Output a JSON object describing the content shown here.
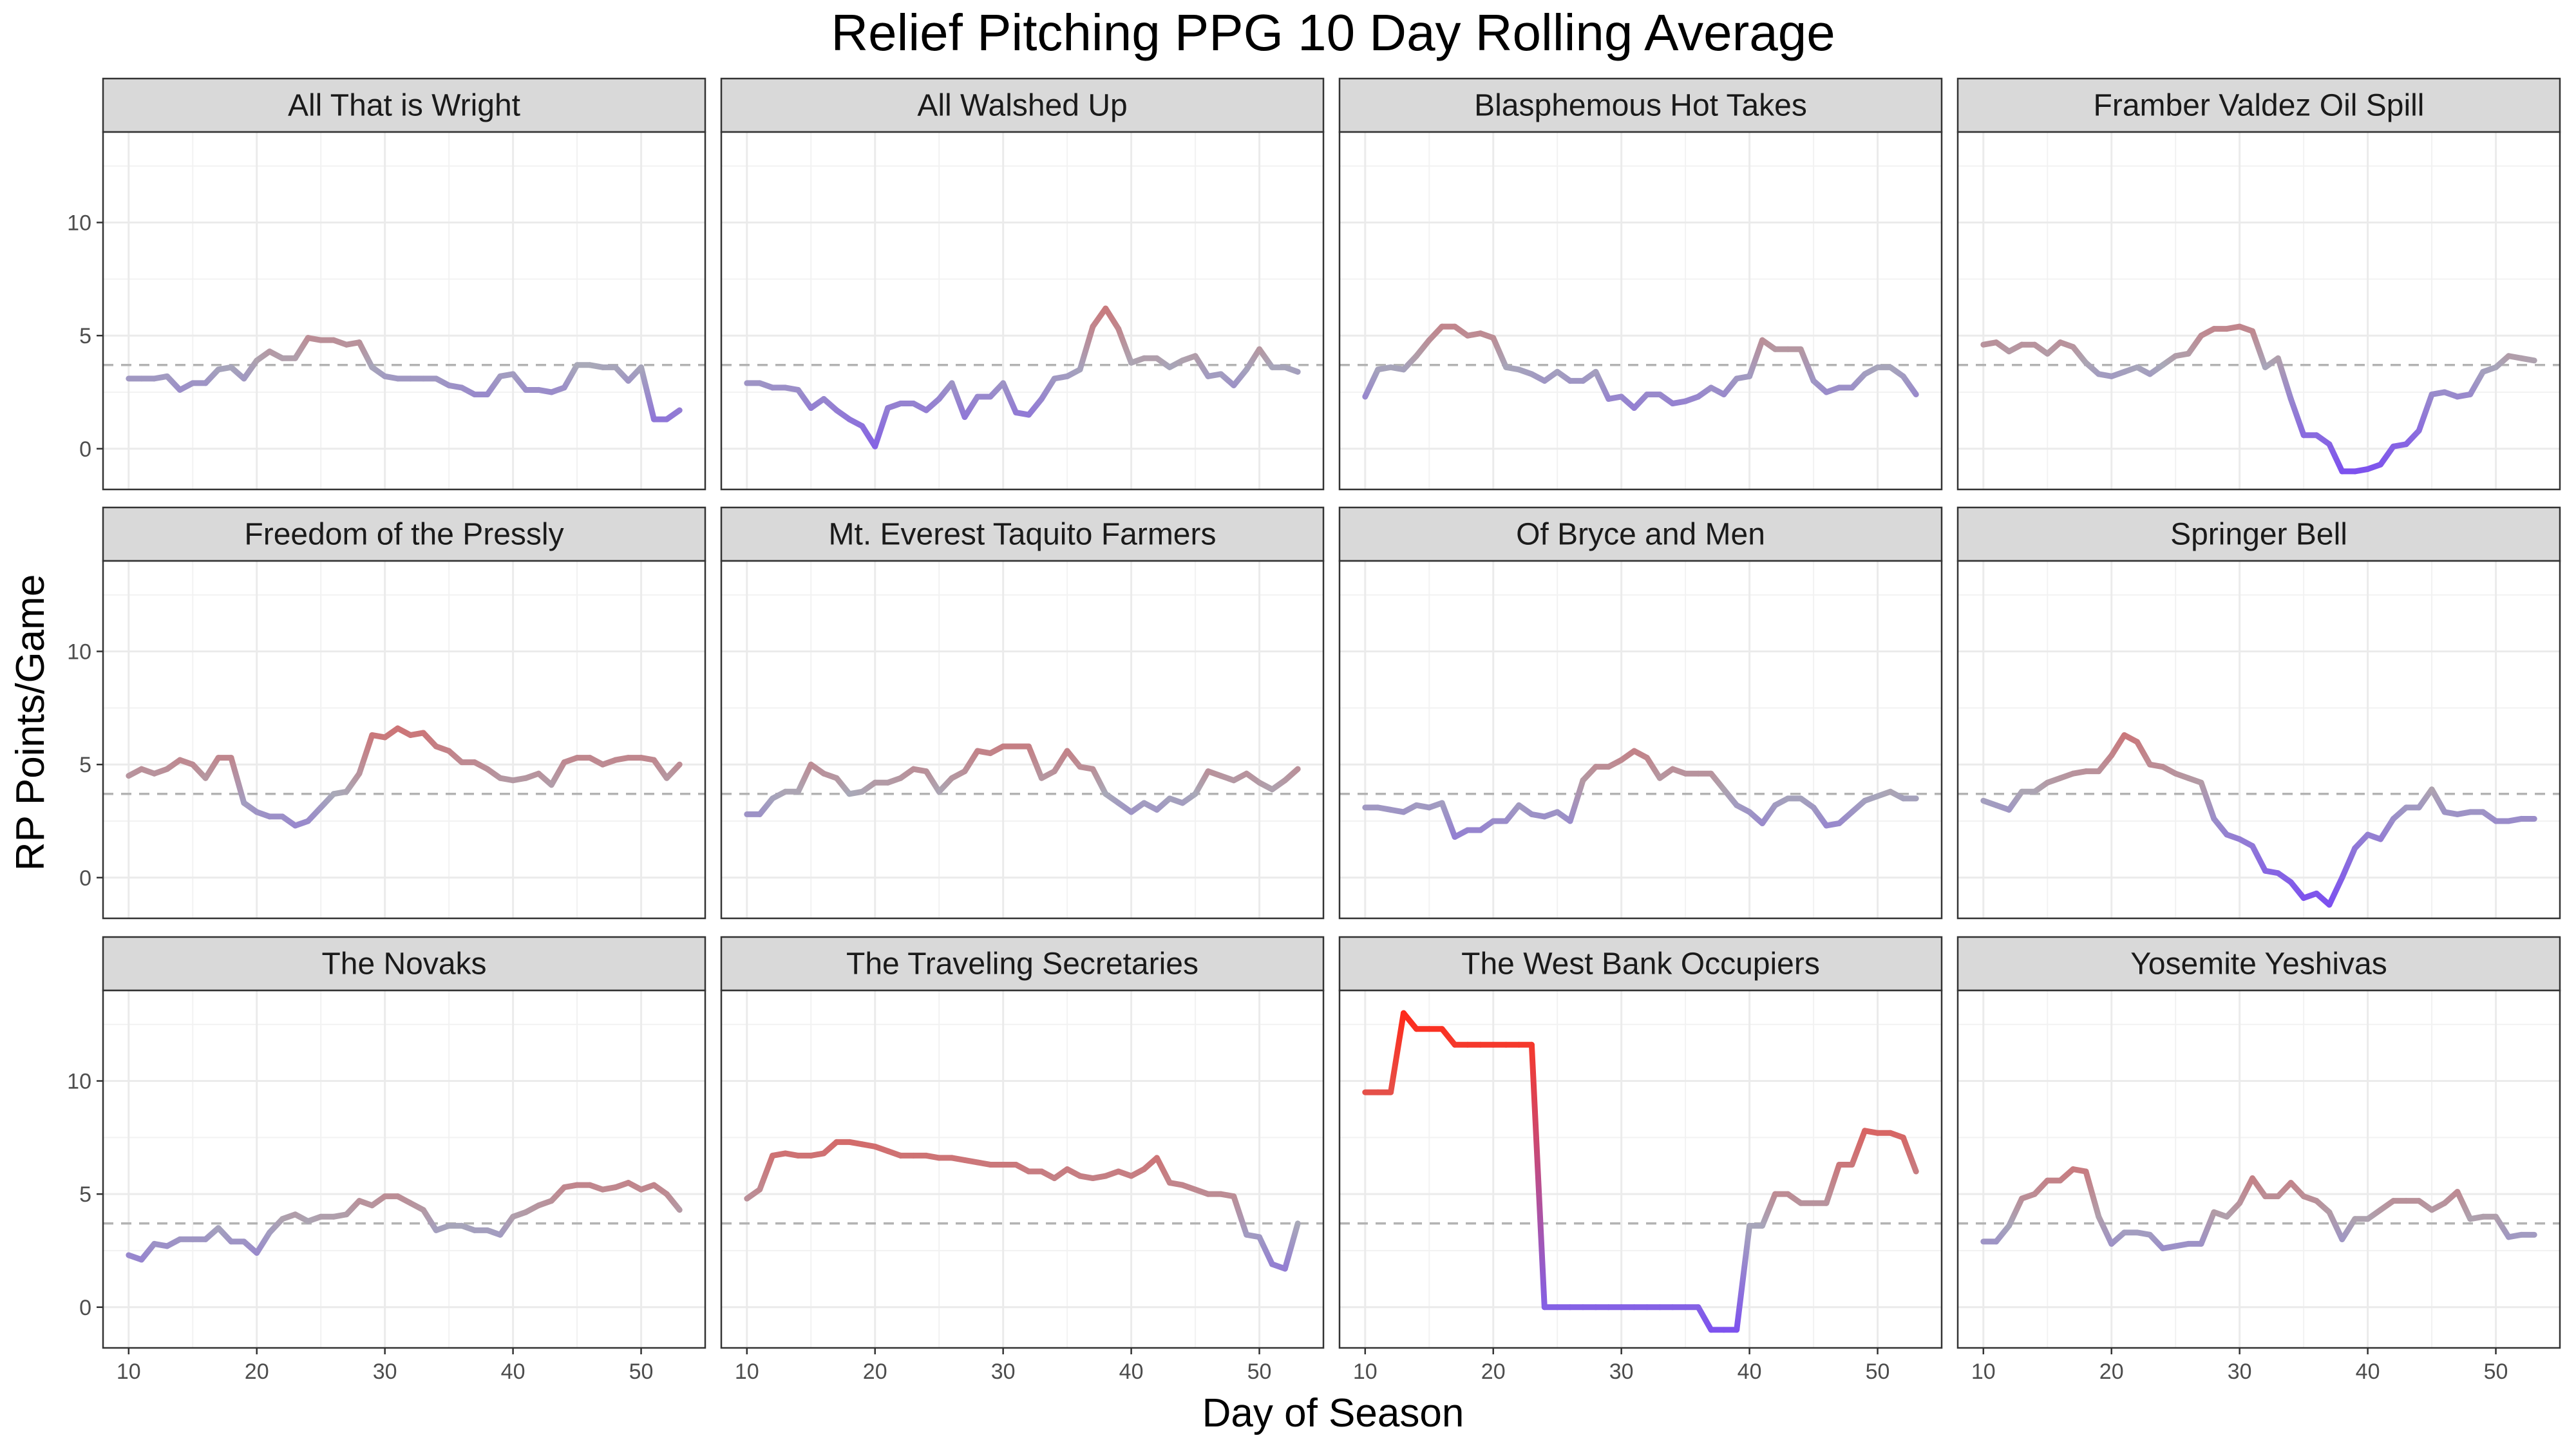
{
  "chart_data": {
    "type": "line",
    "title": "Relief Pitching PPG 10 Day Rolling Average",
    "xlabel": "Day of Season",
    "ylabel": "RP Points/Game",
    "xlim": [
      8,
      55
    ],
    "ylim": [
      -1.8,
      14.0
    ],
    "x_ticks": [
      10,
      20,
      30,
      40,
      50
    ],
    "y_ticks": [
      0,
      5,
      10
    ],
    "reference_line": {
      "y": 3.7,
      "style": "dashed",
      "color": "#b3b3b3"
    },
    "grid": true,
    "facet_layout": {
      "cols": 4,
      "rows": 3
    },
    "color_scale": {
      "low": "#7b4ff0",
      "mid": "#a9a9b8",
      "high": "#ff2a1a",
      "midpoint": 3.7
    },
    "x": [
      10,
      11,
      12,
      13,
      14,
      15,
      16,
      17,
      18,
      19,
      20,
      21,
      22,
      23,
      24,
      25,
      26,
      27,
      28,
      29,
      30,
      31,
      32,
      33,
      34,
      35,
      36,
      37,
      38,
      39,
      40,
      41,
      42,
      43,
      44,
      45,
      46,
      47,
      48,
      49,
      50,
      51,
      52,
      53
    ],
    "series": [
      {
        "name": "All That is Wright",
        "values": [
          3.1,
          3.1,
          3.1,
          3.2,
          2.6,
          2.9,
          2.9,
          3.5,
          3.6,
          3.1,
          3.9,
          4.3,
          4.0,
          4.0,
          4.9,
          4.8,
          4.8,
          4.6,
          4.7,
          3.6,
          3.2,
          3.1,
          3.1,
          3.1,
          3.1,
          2.8,
          2.7,
          2.4,
          2.4,
          3.2,
          3.3,
          2.6,
          2.6,
          2.5,
          2.7,
          3.7,
          3.7,
          3.6,
          3.6,
          3.0,
          3.6,
          1.3,
          1.3,
          1.7
        ]
      },
      {
        "name": "All Walshed Up",
        "values": [
          2.9,
          2.9,
          2.7,
          2.7,
          2.6,
          1.8,
          2.2,
          1.7,
          1.3,
          1.0,
          0.1,
          1.8,
          2.0,
          2.0,
          1.7,
          2.2,
          2.9,
          1.4,
          2.3,
          2.3,
          2.9,
          1.6,
          1.5,
          2.2,
          3.1,
          3.2,
          3.5,
          5.4,
          6.2,
          5.3,
          3.8,
          4.0,
          4.0,
          3.6,
          3.9,
          4.1,
          3.2,
          3.3,
          2.8,
          3.5,
          4.4,
          3.6,
          3.6,
          3.4
        ]
      },
      {
        "name": "Blasphemous Hot Takes",
        "values": [
          2.3,
          3.5,
          3.6,
          3.5,
          4.1,
          4.8,
          5.4,
          5.4,
          5.0,
          5.1,
          4.9,
          3.6,
          3.5,
          3.3,
          3.0,
          3.4,
          3.0,
          3.0,
          3.4,
          2.2,
          2.3,
          1.8,
          2.4,
          2.4,
          2.0,
          2.1,
          2.3,
          2.7,
          2.4,
          3.1,
          3.2,
          4.8,
          4.4,
          4.4,
          4.4,
          3.0,
          2.5,
          2.7,
          2.7,
          3.3,
          3.6,
          3.6,
          3.2,
          2.4
        ]
      },
      {
        "name": "Framber Valdez Oil Spill",
        "values": [
          4.6,
          4.7,
          4.3,
          4.6,
          4.6,
          4.2,
          4.7,
          4.5,
          3.8,
          3.3,
          3.2,
          3.4,
          3.6,
          3.3,
          3.7,
          4.1,
          4.2,
          5.0,
          5.3,
          5.3,
          5.4,
          5.2,
          3.6,
          4.0,
          2.2,
          0.6,
          0.6,
          0.2,
          -1.0,
          -1.0,
          -0.9,
          -0.7,
          0.1,
          0.2,
          0.8,
          2.4,
          2.5,
          2.3,
          2.4,
          3.4,
          3.6,
          4.1,
          4.0,
          3.9
        ]
      },
      {
        "name": "Freedom of the Pressly",
        "values": [
          4.5,
          4.8,
          4.6,
          4.8,
          5.2,
          5.0,
          4.4,
          5.3,
          5.3,
          3.3,
          2.9,
          2.7,
          2.7,
          2.3,
          2.5,
          3.1,
          3.7,
          3.8,
          4.6,
          6.3,
          6.2,
          6.6,
          6.3,
          6.4,
          5.8,
          5.6,
          5.1,
          5.1,
          4.8,
          4.4,
          4.3,
          4.4,
          4.6,
          4.1,
          5.1,
          5.3,
          5.3,
          5.0,
          5.2,
          5.3,
          5.3,
          5.2,
          4.4,
          5.0
        ]
      },
      {
        "name": "Mt. Everest Taquito Farmers",
        "values": [
          2.8,
          2.8,
          3.5,
          3.8,
          3.8,
          5.0,
          4.6,
          4.4,
          3.7,
          3.8,
          4.2,
          4.2,
          4.4,
          4.8,
          4.7,
          3.8,
          4.4,
          4.7,
          5.6,
          5.5,
          5.8,
          5.8,
          5.8,
          4.4,
          4.7,
          5.6,
          4.9,
          4.8,
          3.7,
          3.3,
          2.9,
          3.3,
          3.0,
          3.5,
          3.3,
          3.7,
          4.7,
          4.5,
          4.3,
          4.6,
          4.2,
          3.9,
          4.3,
          4.8
        ]
      },
      {
        "name": "Of Bryce and Men",
        "values": [
          3.1,
          3.1,
          3.0,
          2.9,
          3.2,
          3.1,
          3.3,
          1.8,
          2.1,
          2.1,
          2.5,
          2.5,
          3.2,
          2.8,
          2.7,
          2.9,
          2.5,
          4.3,
          4.9,
          4.9,
          5.2,
          5.6,
          5.3,
          4.4,
          4.8,
          4.6,
          4.6,
          4.6,
          3.9,
          3.2,
          2.9,
          2.4,
          3.2,
          3.5,
          3.5,
          3.1,
          2.3,
          2.4,
          2.9,
          3.4,
          3.6,
          3.8,
          3.5,
          3.5
        ]
      },
      {
        "name": "Springer Bell",
        "values": [
          3.4,
          3.2,
          3.0,
          3.8,
          3.8,
          4.2,
          4.4,
          4.6,
          4.7,
          4.7,
          5.4,
          6.3,
          6.0,
          5.0,
          4.9,
          4.6,
          4.4,
          4.2,
          2.6,
          1.9,
          1.7,
          1.4,
          0.3,
          0.2,
          -0.2,
          -0.9,
          -0.7,
          -1.2,
          0.0,
          1.3,
          1.9,
          1.7,
          2.6,
          3.1,
          3.1,
          3.9,
          2.9,
          2.8,
          2.9,
          2.9,
          2.5,
          2.5,
          2.6,
          2.6
        ]
      },
      {
        "name": "The Novaks",
        "values": [
          2.3,
          2.1,
          2.8,
          2.7,
          3.0,
          3.0,
          3.0,
          3.5,
          2.9,
          2.9,
          2.4,
          3.3,
          3.9,
          4.1,
          3.8,
          4.0,
          4.0,
          4.1,
          4.7,
          4.5,
          4.9,
          4.9,
          4.6,
          4.3,
          3.4,
          3.6,
          3.6,
          3.4,
          3.4,
          3.2,
          4.0,
          4.2,
          4.5,
          4.7,
          5.3,
          5.4,
          5.4,
          5.2,
          5.3,
          5.5,
          5.2,
          5.4,
          5.0,
          4.3
        ]
      },
      {
        "name": "The Traveling Secretaries",
        "values": [
          4.8,
          5.2,
          6.7,
          6.8,
          6.7,
          6.7,
          6.8,
          7.3,
          7.3,
          7.2,
          7.1,
          6.9,
          6.7,
          6.7,
          6.7,
          6.6,
          6.6,
          6.5,
          6.4,
          6.3,
          6.3,
          6.3,
          6.0,
          6.0,
          5.7,
          6.1,
          5.8,
          5.7,
          5.8,
          6.0,
          5.8,
          6.1,
          6.6,
          5.5,
          5.4,
          5.2,
          5.0,
          5.0,
          4.9,
          3.2,
          3.1,
          1.9,
          1.7,
          3.7
        ]
      },
      {
        "name": "The West Bank Occupiers",
        "values": [
          9.5,
          9.5,
          9.5,
          13.0,
          12.3,
          12.3,
          12.3,
          11.6,
          11.6,
          11.6,
          11.6,
          11.6,
          11.6,
          11.6,
          0.0,
          0.0,
          0.0,
          0.0,
          0.0,
          0.0,
          0.0,
          0.0,
          0.0,
          0.0,
          0.0,
          0.0,
          0.0,
          -1.0,
          -1.0,
          -1.0,
          3.6,
          3.6,
          5.0,
          5.0,
          4.6,
          4.6,
          4.6,
          6.3,
          6.3,
          7.8,
          7.7,
          7.7,
          7.5,
          6.0
        ]
      },
      {
        "name": "Yosemite Yeshivas",
        "values": [
          2.9,
          2.9,
          3.6,
          4.8,
          5.0,
          5.6,
          5.6,
          6.1,
          6.0,
          4.0,
          2.8,
          3.3,
          3.3,
          3.2,
          2.6,
          2.7,
          2.8,
          2.8,
          4.2,
          4.0,
          4.6,
          5.7,
          4.9,
          4.9,
          5.5,
          4.9,
          4.7,
          4.2,
          3.0,
          3.9,
          3.9,
          4.3,
          4.7,
          4.7,
          4.7,
          4.3,
          4.6,
          5.1,
          3.9,
          4.0,
          4.0,
          3.1,
          3.2,
          3.2
        ]
      }
    ]
  }
}
